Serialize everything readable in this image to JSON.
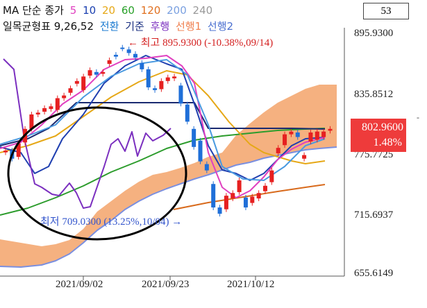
{
  "legend": {
    "ma_title": "MA 단순 종가",
    "ma_items": [
      {
        "label": "5",
        "color": "#e040c0"
      },
      {
        "label": "10",
        "color": "#1a3fb0"
      },
      {
        "label": "20",
        "color": "#e6a817"
      },
      {
        "label": "60",
        "color": "#28a028"
      },
      {
        "label": "120",
        "color": "#e07020"
      },
      {
        "label": "200",
        "color": "#7aa0e0"
      },
      {
        "label": "240",
        "color": "#999999"
      }
    ],
    "ichimoku_title": "일목균형표 9,26,52",
    "ichimoku_items": [
      {
        "label": "전환",
        "color": "#1a7ad0"
      },
      {
        "label": "기준",
        "color": "#1a2f80"
      },
      {
        "label": "후행",
        "color": "#7b2fbf"
      },
      {
        "label": "선행1",
        "color": "#f08050"
      },
      {
        "label": "선행2",
        "color": "#4a6fd0"
      }
    ]
  },
  "count_box": "53",
  "price_box": {
    "price": "802.9600",
    "change": "1.48%"
  },
  "annotations": {
    "high": "← 최고 895.9300 (-10.38%,09/14)",
    "low": "최저 709.0300 (13.25%,10/04) →"
  },
  "chart_data": {
    "type": "candlestick",
    "ylim": [
      640.0,
      915.0
    ],
    "y_ticks": [
      "895.9300",
      "835.8512",
      "775.7725",
      "715.6937",
      "655.6149"
    ],
    "x_ticks": [
      "2021/09/02",
      "2021/09/23",
      "2021/10/12"
    ],
    "candles": [
      {
        "o": 777,
        "c": 779
      },
      {
        "o": 779,
        "c": 770
      },
      {
        "o": 772,
        "c": 787
      },
      {
        "o": 788,
        "c": 803
      },
      {
        "o": 803,
        "c": 819
      },
      {
        "o": 819,
        "c": 821
      },
      {
        "o": 822,
        "c": 826
      },
      {
        "o": 825,
        "c": 828
      },
      {
        "o": 824,
        "c": 837
      },
      {
        "o": 837,
        "c": 840
      },
      {
        "o": 843,
        "c": 848
      },
      {
        "o": 853,
        "c": 856
      },
      {
        "o": 846,
        "c": 861
      },
      {
        "o": 862,
        "c": 868
      },
      {
        "o": 866,
        "c": 863
      },
      {
        "o": 864,
        "c": 866
      },
      {
        "o": 875,
        "c": 879
      },
      {
        "o": 885,
        "c": 883
      },
      {
        "o": 893,
        "c": 892
      },
      {
        "o": 891,
        "c": 887
      },
      {
        "o": 886,
        "c": 882
      },
      {
        "o": 876,
        "c": 869
      },
      {
        "o": 869,
        "c": 849
      },
      {
        "o": 848,
        "c": 846
      },
      {
        "o": 847,
        "c": 856
      },
      {
        "o": 856,
        "c": 860
      },
      {
        "o": 859,
        "c": 861
      },
      {
        "o": 851,
        "c": 831
      },
      {
        "o": 830,
        "c": 811
      },
      {
        "o": 803,
        "c": 783
      },
      {
        "o": 790,
        "c": 767
      },
      {
        "o": 764,
        "c": 757
      },
      {
        "o": 742,
        "c": 716
      },
      {
        "o": 716,
        "c": 709
      },
      {
        "o": 714,
        "c": 729
      },
      {
        "o": 726,
        "c": 732
      },
      {
        "o": 733,
        "c": 746
      },
      {
        "o": 727,
        "c": 716
      },
      {
        "o": 721,
        "c": 728
      },
      {
        "o": 726,
        "c": 732
      },
      {
        "o": 734,
        "c": 740
      },
      {
        "o": 744,
        "c": 757
      },
      {
        "o": 776,
        "c": 782
      },
      {
        "o": 785,
        "c": 797
      },
      {
        "o": 797,
        "c": 800
      },
      {
        "o": 799,
        "c": 794
      },
      {
        "o": 770,
        "c": 774
      },
      {
        "o": 789,
        "c": 799
      },
      {
        "o": 791,
        "c": 800
      },
      {
        "o": 794,
        "c": 800
      },
      {
        "o": 801,
        "c": 803
      }
    ],
    "hi_ticks": [
      4,
      18,
      33,
      39
    ]
  }
}
